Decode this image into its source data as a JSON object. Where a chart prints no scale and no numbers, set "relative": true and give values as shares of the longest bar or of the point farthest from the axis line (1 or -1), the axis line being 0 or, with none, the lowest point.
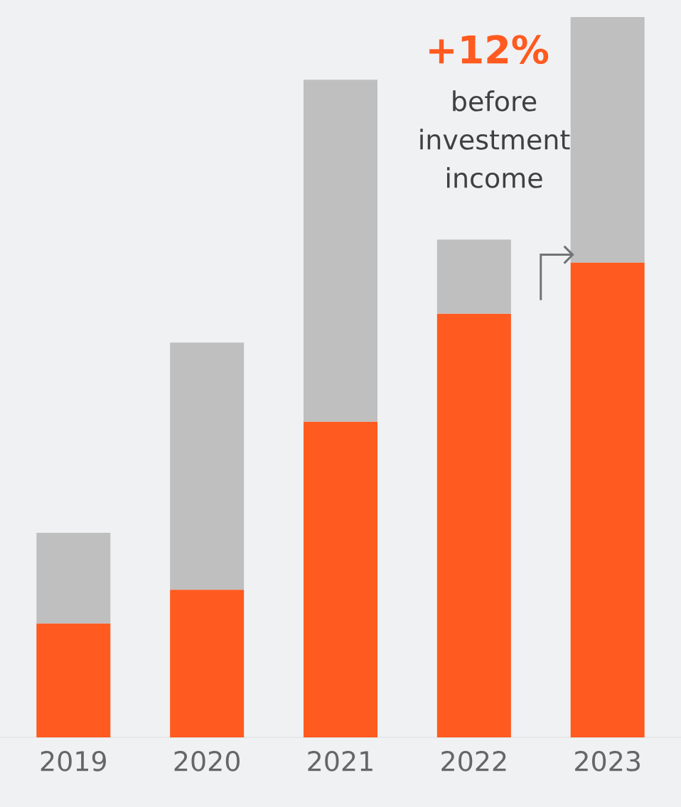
{
  "chart_data": {
    "type": "bar",
    "stacked": true,
    "relative": true,
    "categories": [
      "2019",
      "2020",
      "2021",
      "2022",
      "2023"
    ],
    "series": [
      {
        "color": "#ff5a1f",
        "values": [
          0.158,
          0.205,
          0.438,
          0.588,
          0.659
        ]
      },
      {
        "color": "#bfbfbf",
        "values": [
          0.126,
          0.343,
          0.475,
          0.103,
          0.341
        ]
      }
    ],
    "annotations": [
      "+12%",
      "before investment income"
    ]
  }
}
